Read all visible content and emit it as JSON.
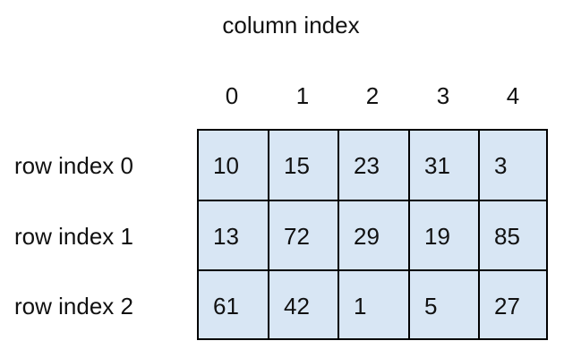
{
  "title": "column index",
  "column_labels": [
    "0",
    "1",
    "2",
    "3",
    "4"
  ],
  "row_labels": [
    "row index 0",
    "row index 1",
    "row index 2"
  ],
  "rows": [
    [
      "10",
      "15",
      "23",
      "31",
      "3"
    ],
    [
      "13",
      "72",
      "29",
      "19",
      "85"
    ],
    [
      "61",
      "42",
      "1",
      "5",
      "27"
    ]
  ],
  "colors": {
    "cell_fill": "#d8e6f4",
    "border": "#000000",
    "text": "#111111",
    "background": "#ffffff"
  }
}
